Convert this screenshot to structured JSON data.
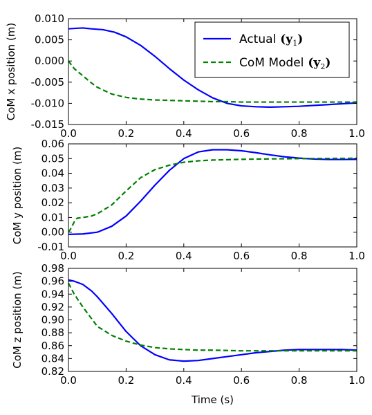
{
  "chart_data": [
    {
      "type": "line",
      "ylabel": "CoM x position (m)",
      "xlabel": "",
      "xlim": [
        0.0,
        1.0
      ],
      "ylim": [
        -0.015,
        0.01
      ],
      "xticks": [
        "0.0",
        "0.2",
        "0.4",
        "0.6",
        "0.8",
        "1.0"
      ],
      "yticks": [
        "0.010",
        "0.005",
        "0.000",
        "-0.005",
        "-0.010",
        "-0.015"
      ],
      "legend": {
        "placement": "top-right",
        "entries": [
          {
            "label": "Actual",
            "math": "(y",
            "sub": "1",
            "close": ")"
          },
          {
            "label": "CoM Model",
            "math": "(y",
            "sub": "2",
            "close": ")"
          }
        ]
      },
      "series": [
        {
          "color": "#0000ff",
          "style": "solid",
          "x": [
            0.0,
            0.02,
            0.05,
            0.08,
            0.12,
            0.16,
            0.2,
            0.25,
            0.3,
            0.35,
            0.4,
            0.45,
            0.5,
            0.55,
            0.6,
            0.65,
            0.7,
            0.75,
            0.8,
            0.85,
            0.9,
            0.95,
            1.0
          ],
          "y": [
            0.0076,
            0.0077,
            0.0078,
            0.0076,
            0.0074,
            0.0068,
            0.0057,
            0.0037,
            0.0011,
            -0.0018,
            -0.0045,
            -0.0068,
            -0.0087,
            -0.01,
            -0.0106,
            -0.0108,
            -0.0109,
            -0.0108,
            -0.0107,
            -0.0105,
            -0.0103,
            -0.0101,
            -0.0099
          ]
        },
        {
          "color": "#008000",
          "style": "dashed",
          "x": [
            0.0,
            0.02,
            0.05,
            0.08,
            0.1,
            0.15,
            0.2,
            0.25,
            0.3,
            0.35,
            0.4,
            0.45,
            0.5,
            0.55,
            0.6,
            0.7,
            0.8,
            0.9,
            1.0
          ],
          "y": [
            0.0,
            -0.0018,
            -0.0035,
            -0.0052,
            -0.0062,
            -0.0078,
            -0.0086,
            -0.009,
            -0.0092,
            -0.0093,
            -0.0094,
            -0.0095,
            -0.0096,
            -0.0096,
            -0.0097,
            -0.0097,
            -0.0097,
            -0.0097,
            -0.0097
          ]
        }
      ]
    },
    {
      "type": "line",
      "ylabel": "CoM y position (m)",
      "xlabel": "",
      "xlim": [
        0.0,
        1.0
      ],
      "ylim": [
        -0.01,
        0.06
      ],
      "xticks": [
        "0.0",
        "0.2",
        "0.4",
        "0.6",
        "0.8",
        "1.0"
      ],
      "yticks": [
        "0.06",
        "0.05",
        "0.04",
        "0.03",
        "0.02",
        "0.01",
        "0.00",
        "-0.01"
      ],
      "series": [
        {
          "color": "#0000ff",
          "style": "solid",
          "x": [
            0.0,
            0.05,
            0.1,
            0.15,
            0.2,
            0.25,
            0.3,
            0.35,
            0.4,
            0.45,
            0.5,
            0.55,
            0.6,
            0.65,
            0.7,
            0.75,
            0.8,
            0.85,
            0.9,
            0.95,
            1.0
          ],
          "y": [
            -0.0015,
            -0.0012,
            0.0,
            0.004,
            0.011,
            0.021,
            0.032,
            0.042,
            0.05,
            0.0545,
            0.056,
            0.056,
            0.0553,
            0.054,
            0.0525,
            0.0512,
            0.0503,
            0.0497,
            0.0494,
            0.0494,
            0.0495
          ]
        },
        {
          "color": "#008000",
          "style": "dashed",
          "x": [
            0.0,
            0.01,
            0.02,
            0.03,
            0.05,
            0.08,
            0.1,
            0.15,
            0.2,
            0.25,
            0.3,
            0.35,
            0.4,
            0.45,
            0.5,
            0.6,
            0.7,
            0.8,
            0.9,
            1.0
          ],
          "y": [
            0.0,
            0.003,
            0.007,
            0.0095,
            0.01,
            0.011,
            0.0125,
            0.0185,
            0.028,
            0.037,
            0.0425,
            0.0455,
            0.0475,
            0.0485,
            0.049,
            0.0495,
            0.0498,
            0.05,
            0.0501,
            0.0502
          ]
        }
      ]
    },
    {
      "type": "line",
      "ylabel": "CoM z position (m)",
      "xlabel": "Time (s)",
      "xlim": [
        0.0,
        1.0
      ],
      "ylim": [
        0.82,
        0.98
      ],
      "xticks": [
        "0.0",
        "0.2",
        "0.4",
        "0.6",
        "0.8",
        "1.0"
      ],
      "yticks": [
        "0.98",
        "0.96",
        "0.94",
        "0.92",
        "0.90",
        "0.88",
        "0.86",
        "0.84",
        "0.82"
      ],
      "series": [
        {
          "color": "#0000ff",
          "style": "solid",
          "x": [
            0.0,
            0.02,
            0.05,
            0.08,
            0.1,
            0.15,
            0.2,
            0.25,
            0.3,
            0.35,
            0.4,
            0.45,
            0.5,
            0.55,
            0.6,
            0.65,
            0.7,
            0.75,
            0.8,
            0.85,
            0.9,
            0.95,
            1.0
          ],
          "y": [
            0.962,
            0.96,
            0.955,
            0.945,
            0.936,
            0.91,
            0.882,
            0.86,
            0.846,
            0.838,
            0.836,
            0.837,
            0.84,
            0.843,
            0.846,
            0.849,
            0.851,
            0.853,
            0.854,
            0.854,
            0.854,
            0.854,
            0.853
          ]
        },
        {
          "color": "#008000",
          "style": "dashed",
          "x": [
            0.0,
            0.02,
            0.05,
            0.08,
            0.1,
            0.15,
            0.2,
            0.25,
            0.3,
            0.35,
            0.4,
            0.45,
            0.5,
            0.6,
            0.7,
            0.8,
            0.9,
            1.0
          ],
          "y": [
            0.957,
            0.94,
            0.92,
            0.902,
            0.89,
            0.876,
            0.867,
            0.861,
            0.857,
            0.855,
            0.854,
            0.853,
            0.853,
            0.852,
            0.852,
            0.852,
            0.852,
            0.852
          ]
        }
      ]
    }
  ]
}
